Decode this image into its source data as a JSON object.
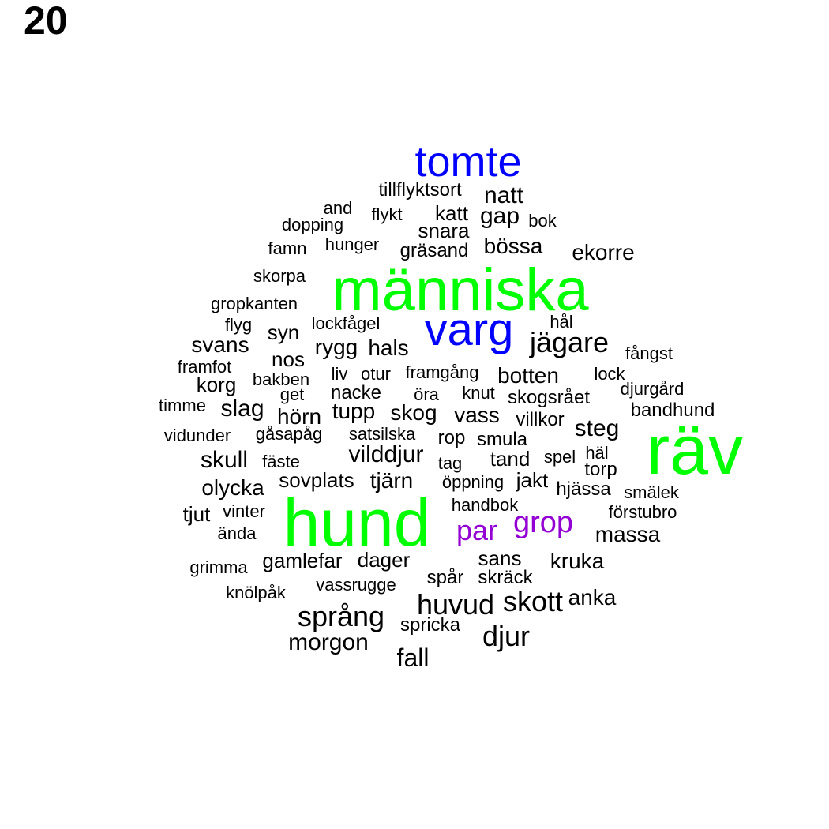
{
  "panel_label": "20",
  "colors": {
    "large_green": "#00ff00",
    "blue": "#0000ff",
    "purple": "#9400d3",
    "default": "#000000"
  },
  "words": [
    {
      "text": "tomte",
      "weight": 5,
      "color": "blue"
    },
    {
      "text": "människa",
      "weight": 8,
      "color": "large_green"
    },
    {
      "text": "varg",
      "weight": 6,
      "color": "blue"
    },
    {
      "text": "räv",
      "weight": 9,
      "color": "large_green"
    },
    {
      "text": "hund",
      "weight": 9,
      "color": "large_green"
    },
    {
      "text": "par",
      "weight": 4,
      "color": "purple"
    },
    {
      "text": "grop",
      "weight": 4,
      "color": "purple"
    },
    {
      "text": "tillflyktsort",
      "weight": 2
    },
    {
      "text": "natt",
      "weight": 3
    },
    {
      "text": "and",
      "weight": 1
    },
    {
      "text": "flykt",
      "weight": 1
    },
    {
      "text": "katt",
      "weight": 2
    },
    {
      "text": "gap",
      "weight": 3
    },
    {
      "text": "bok",
      "weight": 1
    },
    {
      "text": "dopping",
      "weight": 1
    },
    {
      "text": "snara",
      "weight": 2
    },
    {
      "text": "famn",
      "weight": 1
    },
    {
      "text": "hunger",
      "weight": 1
    },
    {
      "text": "gräsand",
      "weight": 2
    },
    {
      "text": "bössa",
      "weight": 3
    },
    {
      "text": "ekorre",
      "weight": 3
    },
    {
      "text": "skorpa",
      "weight": 1
    },
    {
      "text": "gropkanten",
      "weight": 1
    },
    {
      "text": "flyg",
      "weight": 1
    },
    {
      "text": "syn",
      "weight": 2
    },
    {
      "text": "lockfågel",
      "weight": 1
    },
    {
      "text": "hål",
      "weight": 1
    },
    {
      "text": "svans",
      "weight": 3
    },
    {
      "text": "rygg",
      "weight": 3
    },
    {
      "text": "hals",
      "weight": 3
    },
    {
      "text": "jägare",
      "weight": 4
    },
    {
      "text": "fångst",
      "weight": 1
    },
    {
      "text": "nos",
      "weight": 2
    },
    {
      "text": "framfot",
      "weight": 1
    },
    {
      "text": "korg",
      "weight": 2
    },
    {
      "text": "bakben",
      "weight": 1
    },
    {
      "text": "liv",
      "weight": 1
    },
    {
      "text": "otur",
      "weight": 1
    },
    {
      "text": "framgång",
      "weight": 1
    },
    {
      "text": "botten",
      "weight": 3
    },
    {
      "text": "lock",
      "weight": 1
    },
    {
      "text": "djurgård",
      "weight": 1
    },
    {
      "text": "timme",
      "weight": 1
    },
    {
      "text": "get",
      "weight": 1
    },
    {
      "text": "nacke",
      "weight": 2
    },
    {
      "text": "öra",
      "weight": 1
    },
    {
      "text": "knut",
      "weight": 1
    },
    {
      "text": "skogsrået",
      "weight": 2
    },
    {
      "text": "slag",
      "weight": 3
    },
    {
      "text": "hörn",
      "weight": 3
    },
    {
      "text": "tupp",
      "weight": 3
    },
    {
      "text": "skog",
      "weight": 3
    },
    {
      "text": "vass",
      "weight": 3
    },
    {
      "text": "villkor",
      "weight": 2
    },
    {
      "text": "bandhund",
      "weight": 2
    },
    {
      "text": "steg",
      "weight": 3
    },
    {
      "text": "vidunder",
      "weight": 1
    },
    {
      "text": "gåsapåg",
      "weight": 1
    },
    {
      "text": "satsilska",
      "weight": 1
    },
    {
      "text": "rop",
      "weight": 2
    },
    {
      "text": "smula",
      "weight": 2
    },
    {
      "text": "skull",
      "weight": 3
    },
    {
      "text": "fäste",
      "weight": 1
    },
    {
      "text": "vilddjur",
      "weight": 3
    },
    {
      "text": "tag",
      "weight": 1
    },
    {
      "text": "tand",
      "weight": 2
    },
    {
      "text": "spel",
      "weight": 1
    },
    {
      "text": "häl",
      "weight": 1
    },
    {
      "text": "torp",
      "weight": 2
    },
    {
      "text": "olycka",
      "weight": 3
    },
    {
      "text": "sovplats",
      "weight": 3
    },
    {
      "text": "tjärn",
      "weight": 3
    },
    {
      "text": "öppning",
      "weight": 1
    },
    {
      "text": "jakt",
      "weight": 2
    },
    {
      "text": "hjässa",
      "weight": 2
    },
    {
      "text": "smälek",
      "weight": 1
    },
    {
      "text": "tjut",
      "weight": 2
    },
    {
      "text": "vinter",
      "weight": 1
    },
    {
      "text": "handbok",
      "weight": 1
    },
    {
      "text": "förstubro",
      "weight": 1
    },
    {
      "text": "ända",
      "weight": 1
    },
    {
      "text": "massa",
      "weight": 3
    },
    {
      "text": "grimma",
      "weight": 1
    },
    {
      "text": "gamlefar",
      "weight": 2
    },
    {
      "text": "dager",
      "weight": 2
    },
    {
      "text": "sans",
      "weight": 2
    },
    {
      "text": "kruka",
      "weight": 3
    },
    {
      "text": "spår",
      "weight": 2
    },
    {
      "text": "skräck",
      "weight": 2
    },
    {
      "text": "knölpåk",
      "weight": 1
    },
    {
      "text": "vassrugge",
      "weight": 1
    },
    {
      "text": "huvud",
      "weight": 4
    },
    {
      "text": "skott",
      "weight": 4
    },
    {
      "text": "anka",
      "weight": 2
    },
    {
      "text": "språng",
      "weight": 4
    },
    {
      "text": "spricka",
      "weight": 1
    },
    {
      "text": "morgon",
      "weight": 3
    },
    {
      "text": "djur",
      "weight": 4
    },
    {
      "text": "fall",
      "weight": 3
    }
  ]
}
